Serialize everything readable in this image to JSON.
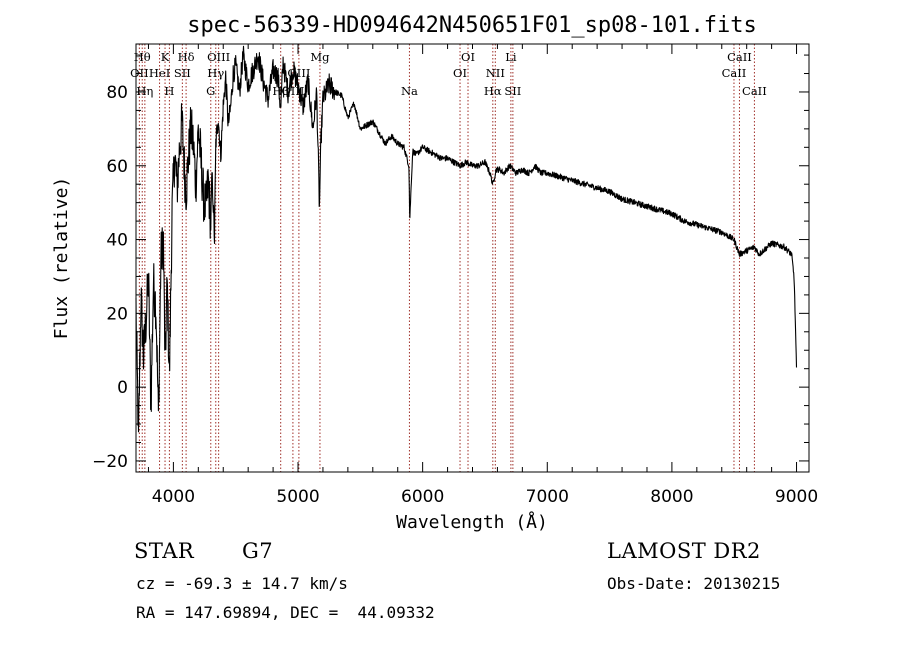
{
  "chart_data": {
    "type": "line",
    "title": "spec-56339-HD094642N450651F01_sp08-101.fits",
    "xlabel": "Wavelength (Å)",
    "ylabel": "Flux (relative)",
    "xlim": [
      3700,
      9100
    ],
    "ylim": [
      -23,
      93
    ],
    "x_ticks": [
      4000,
      5000,
      6000,
      7000,
      8000,
      9000
    ],
    "y_ticks": [
      -20,
      0,
      20,
      40,
      60,
      80
    ],
    "grid": false,
    "series": [
      {
        "name": "flux",
        "x": [
          3700,
          3720,
          3740,
          3760,
          3780,
          3800,
          3820,
          3840,
          3860,
          3880,
          3900,
          3920,
          3933,
          3950,
          3968,
          3990,
          4010,
          4030,
          4050,
          4070,
          4090,
          4102,
          4120,
          4140,
          4160,
          4180,
          4200,
          4220,
          4240,
          4260,
          4280,
          4300,
          4310,
          4330,
          4340,
          4360,
          4380,
          4400,
          4420,
          4440,
          4460,
          4480,
          4500,
          4530,
          4560,
          4600,
          4640,
          4680,
          4720,
          4760,
          4800,
          4840,
          4861,
          4880,
          4920,
          4960,
          5000,
          5040,
          5080,
          5120,
          5150,
          5172,
          5183,
          5200,
          5250,
          5300,
          5350,
          5400,
          5450,
          5500,
          5550,
          5600,
          5650,
          5700,
          5750,
          5800,
          5850,
          5890,
          5896,
          5920,
          5950,
          6000,
          6050,
          6100,
          6150,
          6200,
          6250,
          6300,
          6350,
          6400,
          6450,
          6500,
          6540,
          6563,
          6590,
          6620,
          6650,
          6700,
          6750,
          6800,
          6850,
          6880,
          6900,
          6950,
          7000,
          7100,
          7200,
          7300,
          7400,
          7500,
          7600,
          7700,
          7800,
          7900,
          8000,
          8100,
          8200,
          8300,
          8400,
          8498,
          8542,
          8600,
          8662,
          8700,
          8800,
          8900,
          8960,
          8980,
          8990,
          9000
        ],
        "values": [
          22,
          -15,
          25,
          8,
          18,
          30,
          -5,
          28,
          22,
          -8,
          35,
          40,
          5,
          28,
          3,
          48,
          63,
          54,
          65,
          72,
          58,
          53,
          62,
          70,
          66,
          55,
          70,
          62,
          52,
          48,
          56,
          44,
          58,
          40,
          66,
          73,
          63,
          76,
          84,
          71,
          76,
          85,
          87,
          80,
          90,
          82,
          86,
          90,
          83,
          78,
          86,
          84,
          75,
          88,
          80,
          86,
          82,
          76,
          83,
          70,
          80,
          48,
          66,
          78,
          82,
          80,
          79,
          73,
          77,
          70,
          71,
          72,
          69,
          66,
          68,
          66,
          65,
          60,
          45,
          64,
          63,
          65,
          64,
          63,
          62,
          62,
          61,
          60,
          61,
          60,
          60,
          61,
          58,
          55,
          59,
          59,
          58,
          60,
          58,
          59,
          58,
          59,
          60,
          58,
          58,
          57,
          56,
          55,
          54,
          53,
          51,
          50,
          49,
          48,
          47,
          45,
          44,
          43,
          42,
          40,
          36,
          37,
          38,
          36,
          39,
          38,
          36,
          30,
          18,
          5
        ]
      }
    ],
    "line_markers": [
      {
        "wavelength": 3750,
        "label": "Hθ",
        "row": 1
      },
      {
        "wavelength": 3727,
        "label": "OII",
        "row": 2
      },
      {
        "wavelength": 3771,
        "label": "Hη",
        "row": 3
      },
      {
        "wavelength": 3889,
        "label": "HeI",
        "row": 2
      },
      {
        "wavelength": 3933,
        "label": "K",
        "row": 1
      },
      {
        "wavelength": 3968,
        "label": "H",
        "row": 3
      },
      {
        "wavelength": 4072,
        "label": "SII",
        "row": 2
      },
      {
        "wavelength": 4102,
        "label": "Hδ",
        "row": 1
      },
      {
        "wavelength": 4300,
        "label": "G",
        "row": 3
      },
      {
        "wavelength": 4340,
        "label": "Hγ",
        "row": 2
      },
      {
        "wavelength": 4363,
        "label": "OIII",
        "row": 1
      },
      {
        "wavelength": 4861,
        "label": "Hβ",
        "row": 3
      },
      {
        "wavelength": 4959,
        "label": "OIII",
        "row": 3
      },
      {
        "wavelength": 5007,
        "label": "OIII",
        "row": 2
      },
      {
        "wavelength": 5176,
        "label": "Mg",
        "row": 1
      },
      {
        "wavelength": 5894,
        "label": "Na",
        "row": 3
      },
      {
        "wavelength": 6300,
        "label": "OI",
        "row": 2
      },
      {
        "wavelength": 6364,
        "label": "OI",
        "row": 1
      },
      {
        "wavelength": 6563,
        "label": "Hα",
        "row": 3
      },
      {
        "wavelength": 6583,
        "label": "NII",
        "row": 2
      },
      {
        "wavelength": 6708,
        "label": "Li",
        "row": 1
      },
      {
        "wavelength": 6724,
        "label": "SII",
        "row": 3
      },
      {
        "wavelength": 8498,
        "label": "CaII",
        "row": 2
      },
      {
        "wavelength": 8542,
        "label": "CaII",
        "row": 1
      },
      {
        "wavelength": 8662,
        "label": "CaII",
        "row": 3
      }
    ]
  },
  "info": {
    "object_class": "STAR",
    "subclass": "G7",
    "redshift": "cz = -69.3 ± 14.7 km/s",
    "coords": "RA = 147.69894, DEC =  44.09332",
    "survey": "LAMOST DR2",
    "obs_date": "Obs-Date: 20130215"
  },
  "colors": {
    "axis": "#000000",
    "spectrum": "#000000",
    "marker": "#a0302a"
  }
}
